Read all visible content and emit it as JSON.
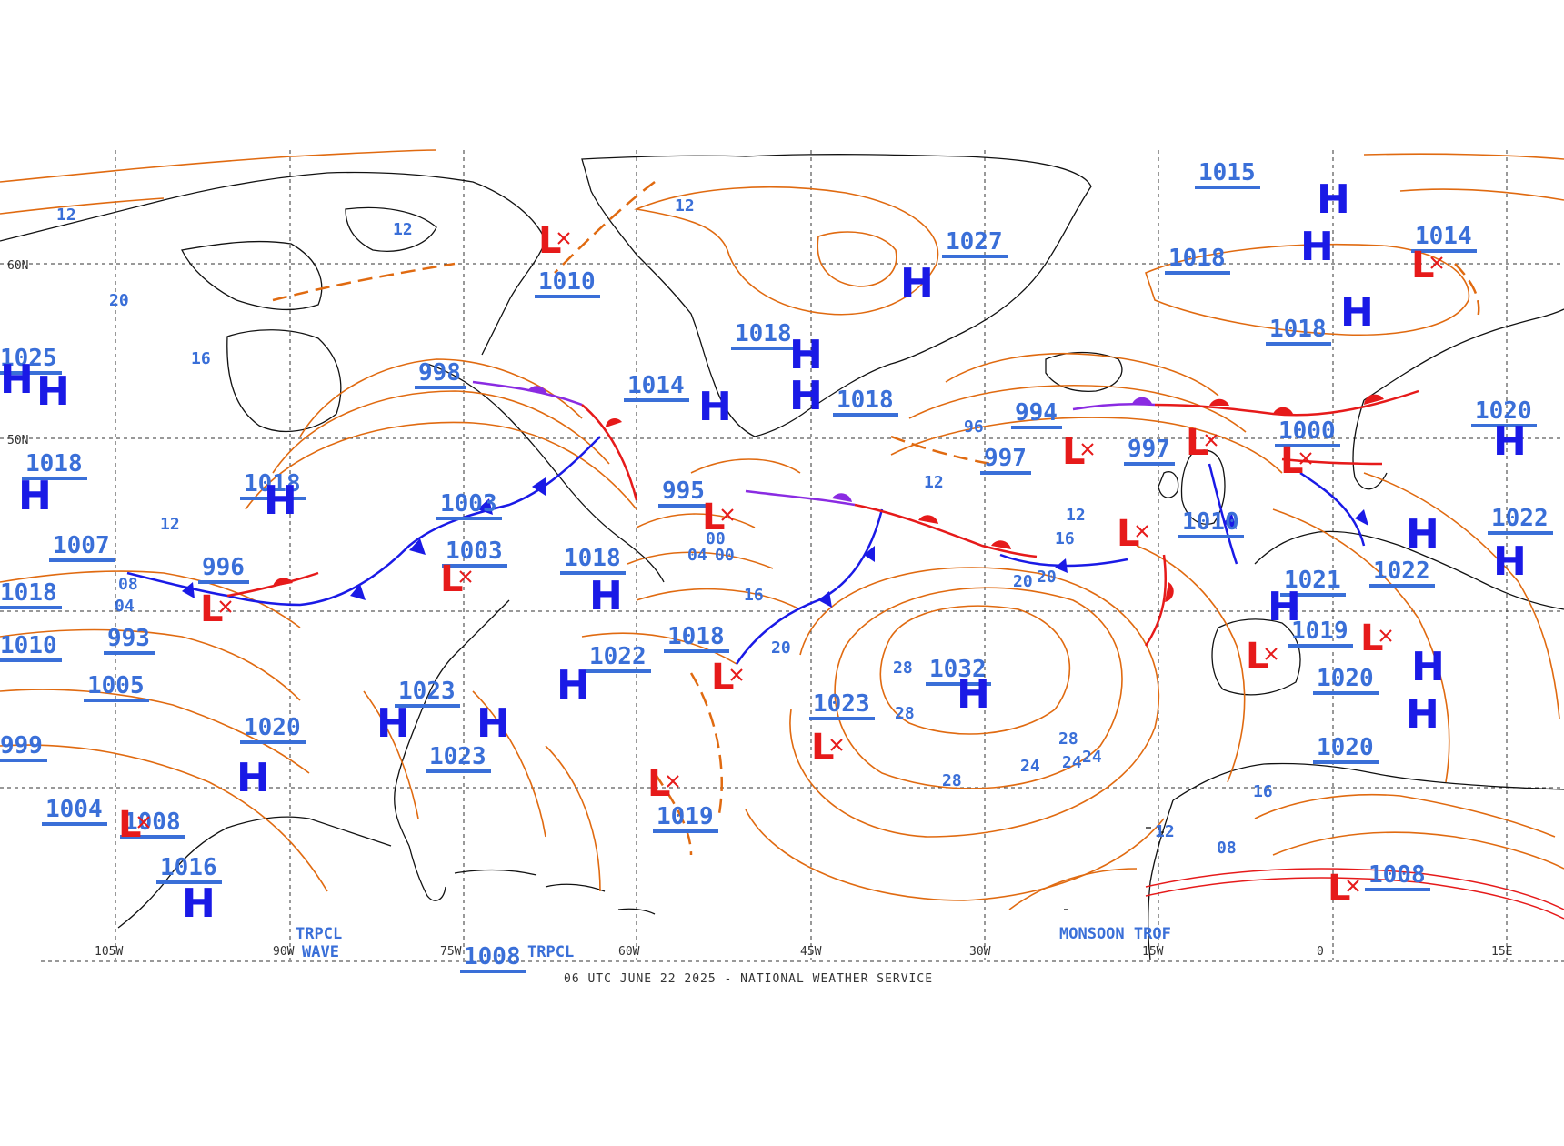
{
  "caption": "06 UTC JUNE 22 2025 - NATIONAL WEATHER SERVICE",
  "colors": {
    "isobar": "#e06a10",
    "center_value": "#3a6fd8",
    "high": "#1a1ae6",
    "low": "#e61a1a",
    "cold_front": "#1a1ae6",
    "warm_front": "#e61a1a",
    "occluded_front": "#8a2be2",
    "grid": "#333333",
    "coast": "#111111"
  },
  "longitude_labels": [
    "105W",
    "90W",
    "75W",
    "60W",
    "45W",
    "30W",
    "15W",
    "0",
    "15E"
  ],
  "latitude_labels": [
    "60N",
    "50N"
  ],
  "pressure_values": [
    "1015",
    "1027",
    "1018",
    "1014",
    "1010",
    "1018",
    "1018",
    "1018",
    "998",
    "1014",
    "994",
    "997",
    "997",
    "1000",
    "1020",
    "1025",
    "1018",
    "1018",
    "1003",
    "995",
    "1010",
    "1022",
    "1007",
    "996",
    "1003",
    "1018",
    "1021",
    "1022",
    "1018",
    "1019",
    "1010",
    "993",
    "1005",
    "1022",
    "1023",
    "1032",
    "1018",
    "1020",
    "1023",
    "1020",
    "999",
    "1004",
    "1008",
    "1023",
    "1019",
    "1020",
    "1016",
    "1008",
    "1008"
  ],
  "high_symbol": "H",
  "low_symbol": "L",
  "isobar_labels": [
    "12",
    "12",
    "12",
    "16",
    "20",
    "24",
    "28",
    "28",
    "28",
    "28",
    "24",
    "24",
    "20",
    "20",
    "16",
    "16",
    "12",
    "12",
    "08",
    "08",
    "04",
    "04",
    "00",
    "00",
    "96",
    "20",
    "16",
    "12",
    "12"
  ],
  "feature_labels": {
    "tropical_wave": [
      "TRPCL",
      "WAVE"
    ],
    "tropical_wave_2": "TRPCL",
    "monsoon_trough": "MONSOON TROF"
  }
}
